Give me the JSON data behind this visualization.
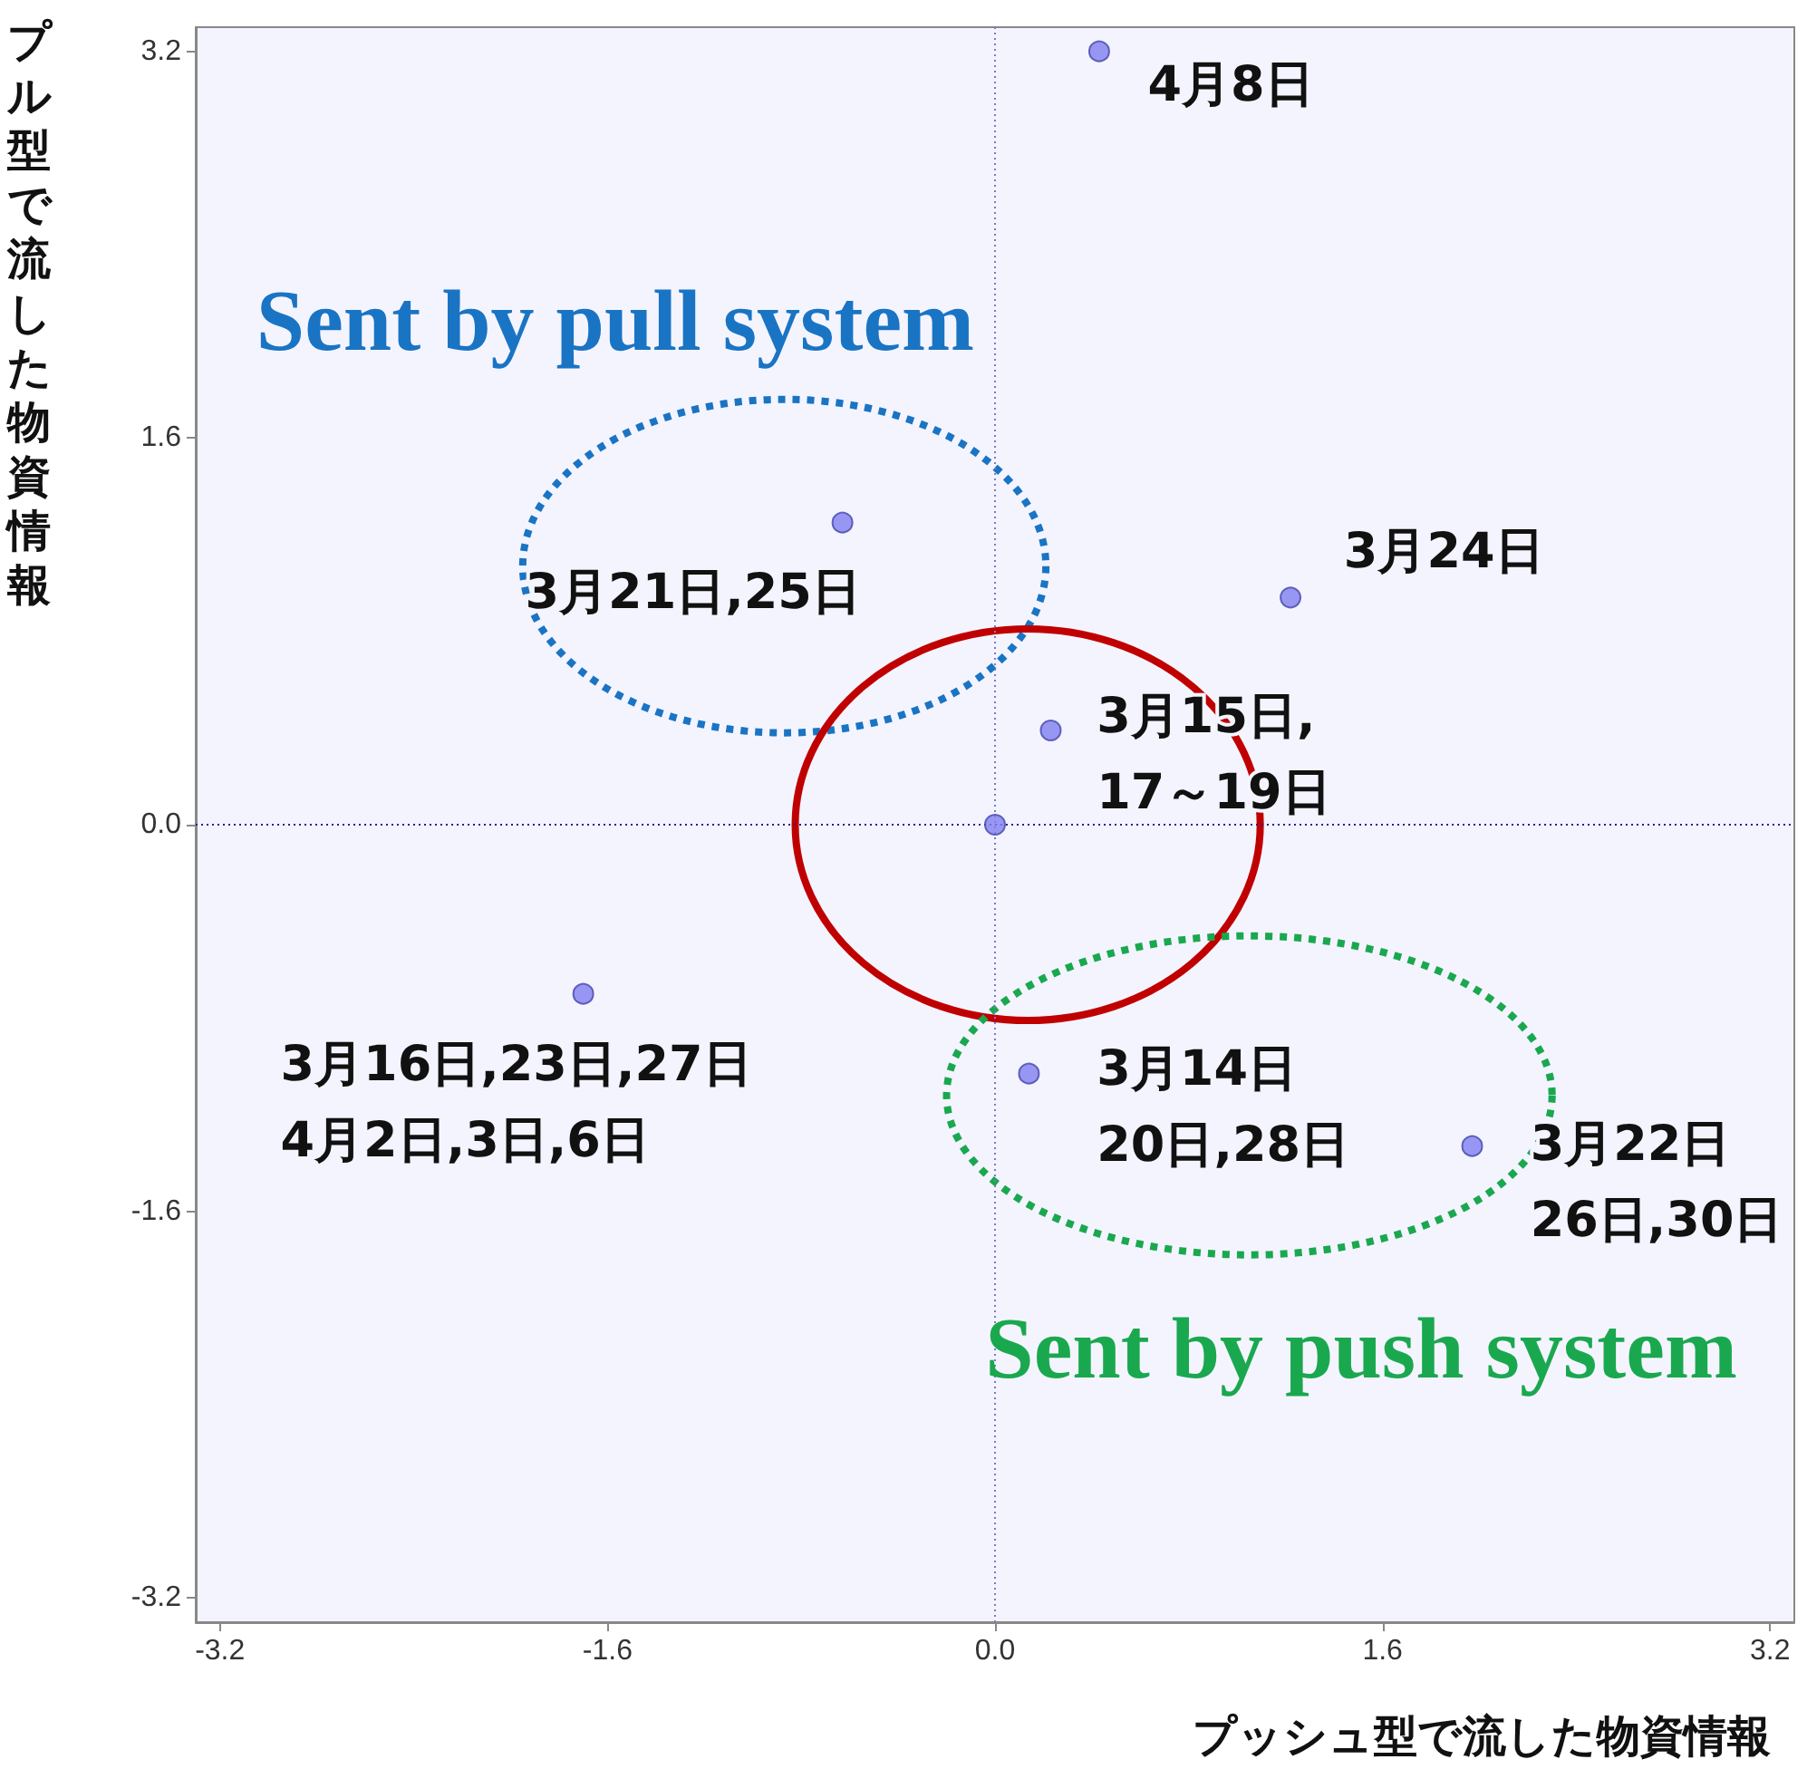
{
  "chart_data": {
    "type": "scatter",
    "xlabel": "プッシュ型で流した物資情報",
    "ylabel": "プル型で流した物資情報",
    "x": [
      0.43,
      -0.63,
      1.22,
      0.23,
      0,
      -1.7,
      0.14,
      1.97
    ],
    "values": [
      3.2,
      1.25,
      0.94,
      0.39,
      0,
      -0.7,
      -1.03,
      -1.33
    ],
    "color": "#7f7ff0",
    "marker": "circle",
    "xlim": [
      -3.3,
      3.3
    ],
    "ylim": [
      -3.3,
      3.3
    ],
    "xticks": [
      -3.2,
      -1.6,
      {
        "value": 0,
        "label": "0.0"
      },
      1.6,
      3.2
    ],
    "yticks": [
      -3.2,
      -1.6,
      {
        "value": 0,
        "label": "0.0"
      },
      1.6,
      3.2
    ],
    "ref_lines": [
      {
        "axis": "x",
        "value": 0,
        "color": "#7a7acc",
        "line_style": "dotted"
      },
      {
        "axis": "y",
        "value": 0,
        "color": "#22228a",
        "line_style": "dotted"
      }
    ],
    "annotations": [
      "4月8日",
      "3月21日,25日",
      "3月24日",
      "3月15日,\n17～19日",
      "3月16日,23日,27日\n4月2日,3日,6日",
      "3月14日\n20日,28日",
      "3月22日\n26日,30日",
      "Sent by pull system",
      "Sent by push system"
    ]
  }
}
